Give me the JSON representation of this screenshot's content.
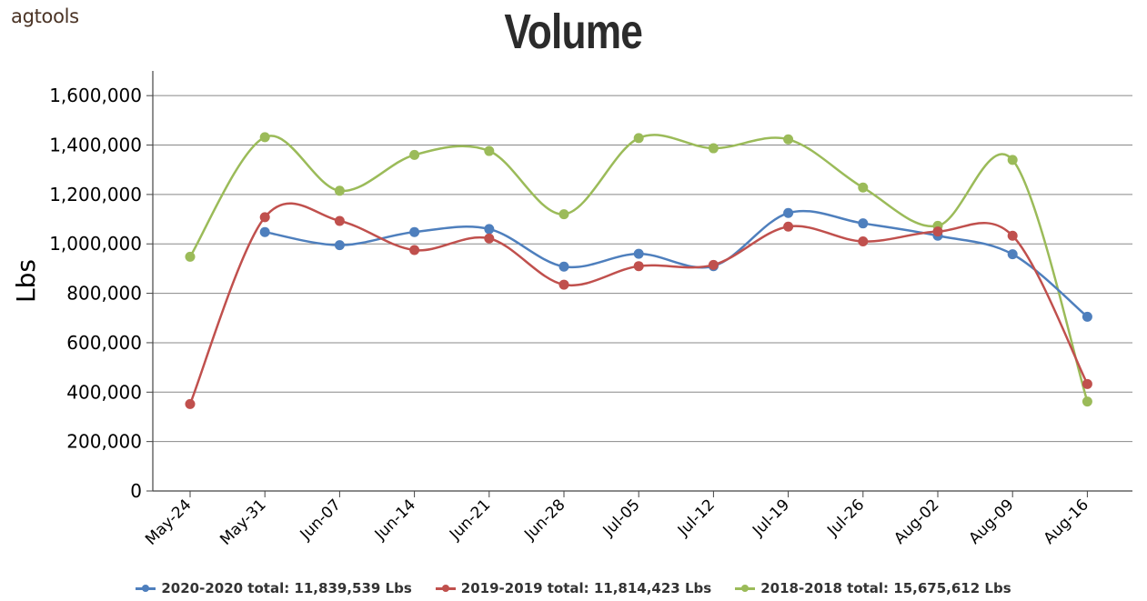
{
  "logo": "agtools",
  "chart_data": {
    "type": "line",
    "title": "Volume",
    "ylabel": "Lbs",
    "xlabel": "",
    "categories": [
      "May-24",
      "May-31",
      "Jun-07",
      "Jun-14",
      "Jun-21",
      "Jun-28",
      "Jul-05",
      "Jul-12",
      "Jul-19",
      "Jul-26",
      "Aug-02",
      "Aug-09",
      "Aug-16"
    ],
    "ylim": [
      0,
      1700000
    ],
    "yticks": [
      0,
      200000,
      400000,
      600000,
      800000,
      1000000,
      1200000,
      1400000,
      1600000
    ],
    "ytick_labels": [
      "0",
      "200,000",
      "400,000",
      "600,000",
      "800,000",
      "1,000,000",
      "1,200,000",
      "1,400,000",
      "1,600,000"
    ],
    "grid": true,
    "legend_position": "bottom",
    "series": [
      {
        "name": "2020-2020 total: 11,839,539 Lbs",
        "color": "#4e7fbd",
        "values": [
          null,
          1048000,
          995000,
          1048000,
          1060000,
          908000,
          960000,
          910000,
          1125000,
          1083000,
          1033000,
          958000,
          705000
        ]
      },
      {
        "name": "2019-2019 total: 11,814,423 Lbs",
        "color": "#c0504d",
        "values": [
          352000,
          1108000,
          1093000,
          975000,
          1022000,
          835000,
          910000,
          915000,
          1070000,
          1010000,
          1050000,
          1033000,
          433000
        ]
      },
      {
        "name": "2018-2018 total: 15,675,612 Lbs",
        "color": "#9bbb59",
        "values": [
          948000,
          1432000,
          1215000,
          1360000,
          1376000,
          1120000,
          1428000,
          1387000,
          1423000,
          1228000,
          1073000,
          1340000,
          362000
        ]
      }
    ]
  }
}
